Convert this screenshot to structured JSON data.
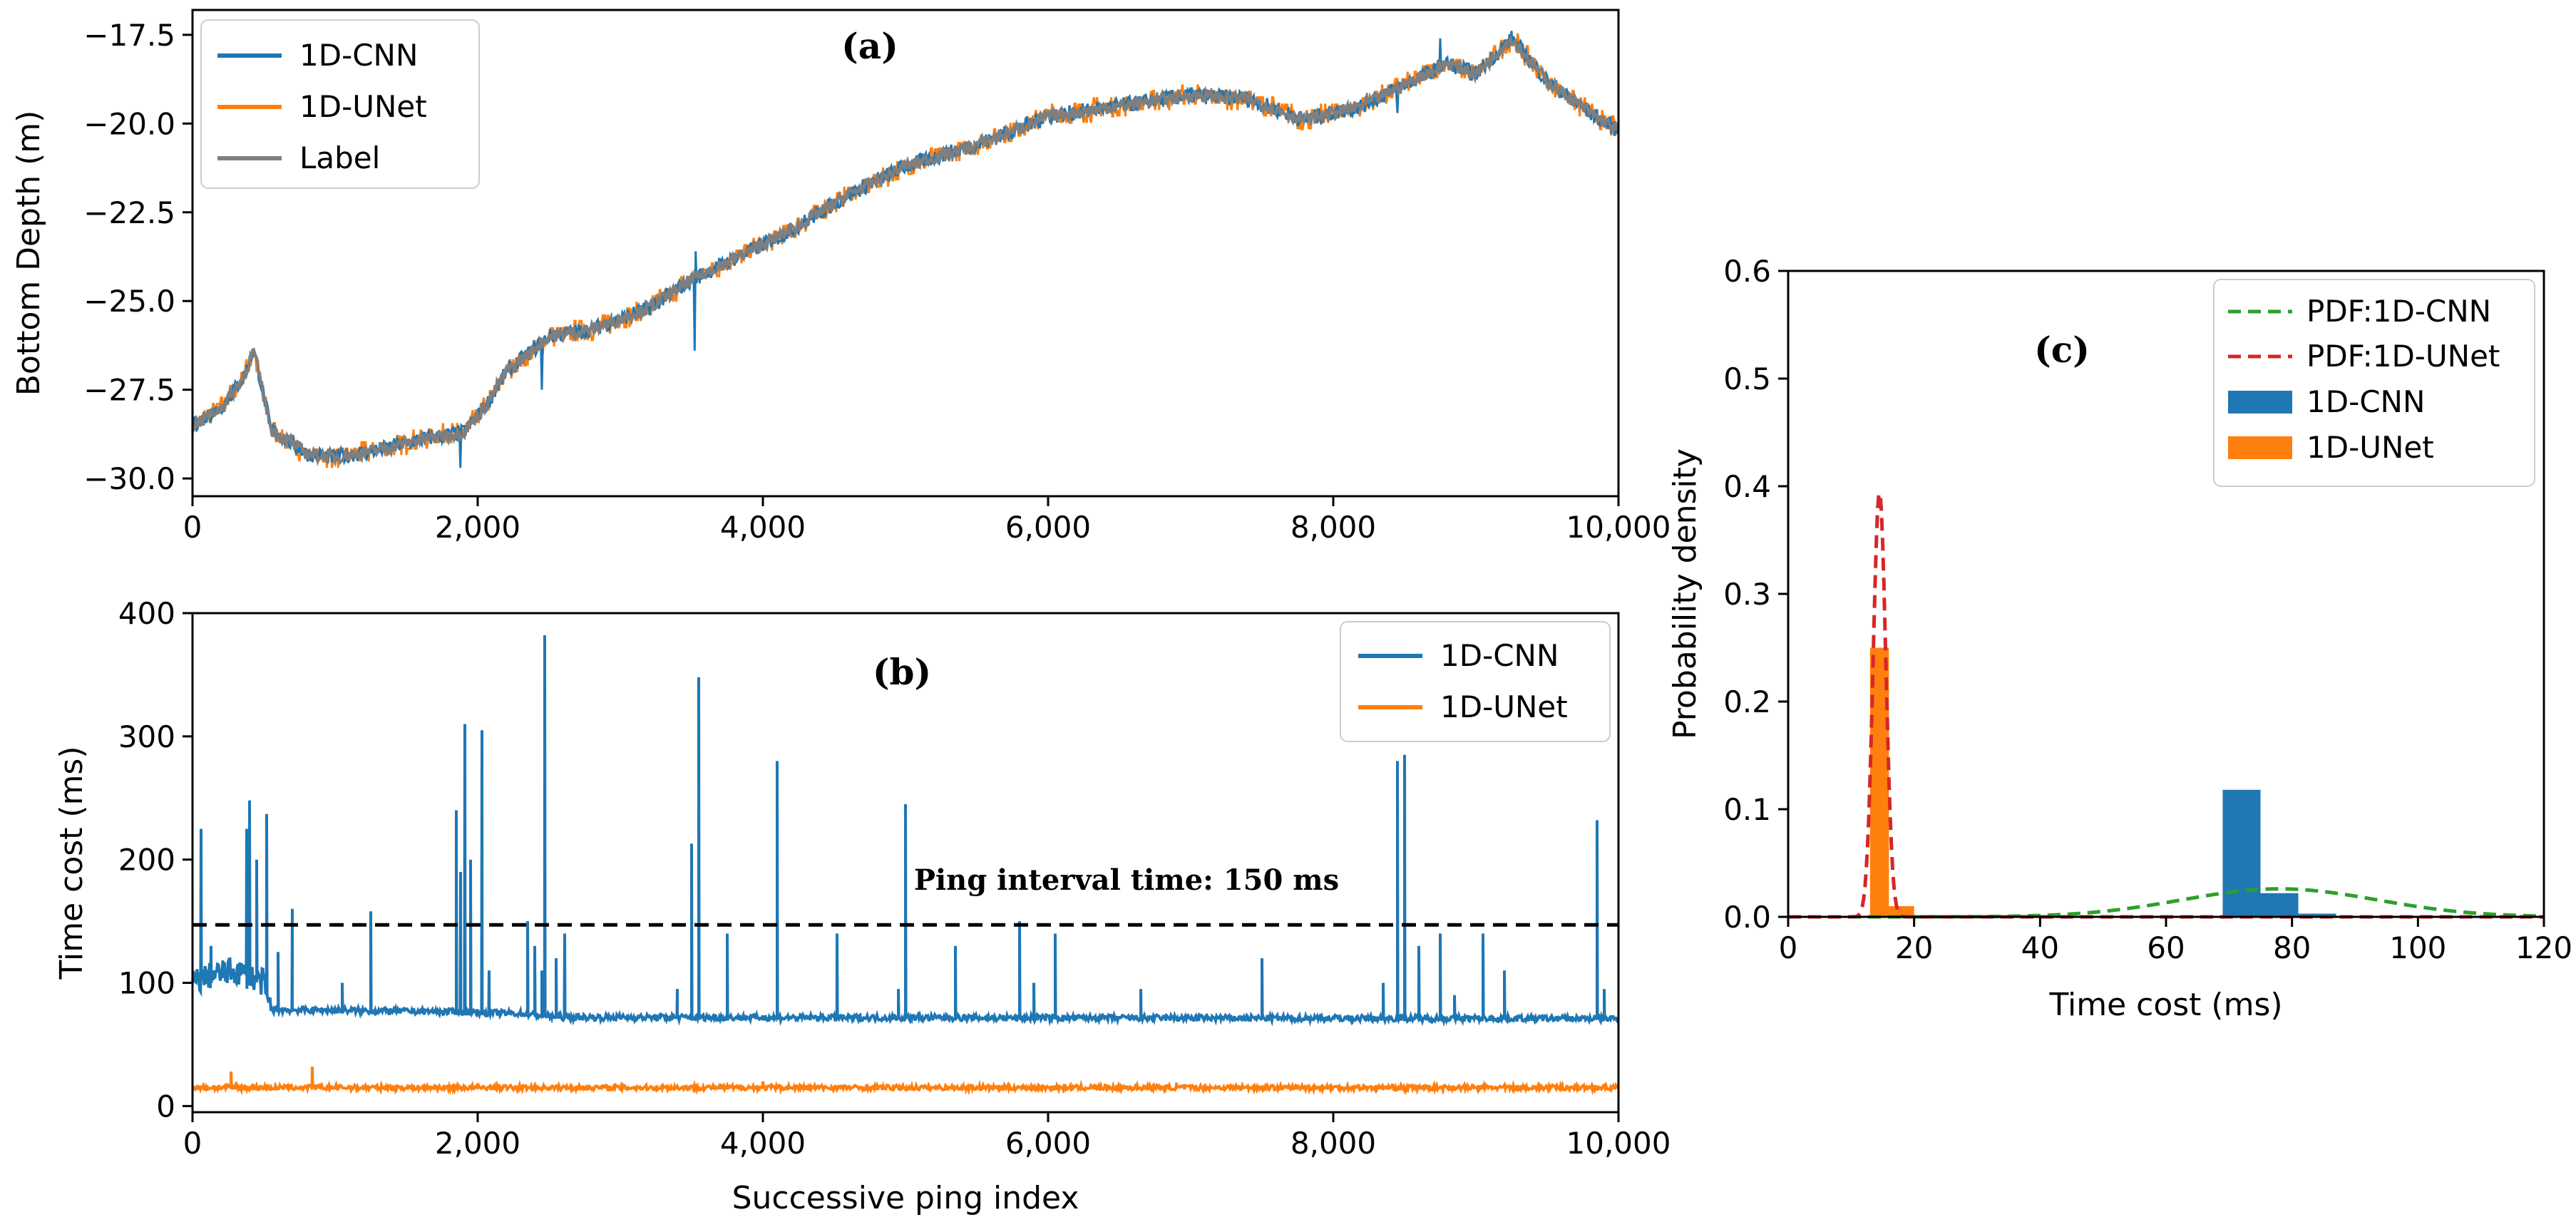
{
  "colors": {
    "cnn": "#1f77b4",
    "unet": "#ff7f0e",
    "label": "#7f7f7f",
    "pdf_cnn": "#2ca02c",
    "pdf_unet": "#d62728",
    "ref": "#000000"
  },
  "chart_data": [
    {
      "id": "a",
      "type": "line",
      "panel_label": "(a)",
      "xlabel": "",
      "ylabel": "Bottom Depth (m)",
      "xlim": [
        0,
        10000
      ],
      "ylim": [
        -30.5,
        -16.8
      ],
      "xticks": [
        0,
        2000,
        4000,
        6000,
        8000,
        10000
      ],
      "xtick_labels": [
        "0",
        "2,000",
        "4,000",
        "6,000",
        "8,000",
        "10,000"
      ],
      "yticks": [
        -17.5,
        -20.0,
        -22.5,
        -25.0,
        -27.5,
        -30.0
      ],
      "ytick_labels": [
        "−17.5",
        "−20.0",
        "−22.5",
        "−25.0",
        "−27.5",
        "−30.0"
      ],
      "legend": {
        "placement": "top-left",
        "entries": [
          "1D-CNN",
          "1D-UNet",
          "Label"
        ]
      },
      "profile": {
        "x": [
          0,
          200,
          350,
          430,
          550,
          800,
          1000,
          1300,
          1600,
          1900,
          2050,
          2200,
          2500,
          2800,
          3200,
          3500,
          3800,
          4200,
          4600,
          5000,
          5500,
          6000,
          6500,
          7000,
          7400,
          7800,
          8200,
          8500,
          8800,
          9000,
          9250,
          9500,
          9800,
          10000
        ],
        "y": [
          -28.5,
          -28.0,
          -27.2,
          -26.4,
          -28.6,
          -29.3,
          -29.4,
          -29.2,
          -28.9,
          -28.7,
          -28.0,
          -27.0,
          -26.0,
          -25.8,
          -25.2,
          -24.4,
          -23.8,
          -23.0,
          -22.0,
          -21.2,
          -20.6,
          -19.8,
          -19.5,
          -19.2,
          -19.3,
          -19.9,
          -19.5,
          -18.9,
          -18.3,
          -18.6,
          -17.6,
          -18.8,
          -19.7,
          -20.2
        ]
      },
      "spikes": [
        {
          "x": 1880,
          "y": -29.7
        },
        {
          "x": 2450,
          "y": -27.5
        },
        {
          "x": 3520,
          "y": -26.4
        },
        {
          "x": 3530,
          "y": -23.6
        },
        {
          "x": 8450,
          "y": -19.7
        },
        {
          "x": 8750,
          "y": -17.6
        }
      ]
    },
    {
      "id": "b",
      "type": "line",
      "panel_label": "(b)",
      "xlabel": "Successive ping index",
      "ylabel": "Time cost (ms)",
      "xlim": [
        0,
        10000
      ],
      "ylim": [
        -5,
        400
      ],
      "xticks": [
        0,
        2000,
        4000,
        6000,
        8000,
        10000
      ],
      "xtick_labels": [
        "0",
        "2,000",
        "4,000",
        "6,000",
        "8,000",
        "10,000"
      ],
      "yticks": [
        0,
        100,
        200,
        300,
        400
      ],
      "ytick_labels": [
        "0",
        "100",
        "200",
        "300",
        "400"
      ],
      "legend": {
        "placement": "top-right",
        "entries": [
          "1D-CNN",
          "1D-UNet"
        ]
      },
      "reference": {
        "y": 147,
        "text": "Ping interval time: 150 ms"
      },
      "series": [
        {
          "name": "1D-CNN",
          "baseline": {
            "x": [
              0,
              100,
              300,
              500,
              550,
              800,
              1500,
              2000,
              2300,
              2600,
              10000
            ],
            "y": [
              100,
              105,
              110,
              100,
              78,
              78,
              77,
              76,
              75,
              72,
              71
            ]
          },
          "spikes": [
            [
              60,
              225
            ],
            [
              130,
              130
            ],
            [
              380,
              225
            ],
            [
              400,
              248
            ],
            [
              450,
              200
            ],
            [
              520,
              237
            ],
            [
              600,
              125
            ],
            [
              700,
              160
            ],
            [
              1050,
              100
            ],
            [
              1250,
              158
            ],
            [
              1850,
              240
            ],
            [
              1880,
              190
            ],
            [
              1910,
              310
            ],
            [
              1950,
              200
            ],
            [
              2030,
              305
            ],
            [
              2080,
              110
            ],
            [
              2350,
              150
            ],
            [
              2400,
              130
            ],
            [
              2450,
              110
            ],
            [
              2470,
              382
            ],
            [
              2550,
              120
            ],
            [
              2610,
              140
            ],
            [
              3400,
              95
            ],
            [
              3500,
              213
            ],
            [
              3550,
              348
            ],
            [
              3750,
              140
            ],
            [
              4100,
              280
            ],
            [
              4520,
              140
            ],
            [
              4950,
              95
            ],
            [
              5000,
              245
            ],
            [
              5350,
              130
            ],
            [
              5800,
              150
            ],
            [
              5900,
              100
            ],
            [
              6050,
              140
            ],
            [
              6650,
              95
            ],
            [
              7500,
              120
            ],
            [
              8350,
              100
            ],
            [
              8450,
              280
            ],
            [
              8500,
              285
            ],
            [
              8600,
              130
            ],
            [
              8750,
              140
            ],
            [
              8850,
              90
            ],
            [
              9050,
              140
            ],
            [
              9200,
              110
            ],
            [
              9850,
              232
            ],
            [
              9900,
              95
            ]
          ]
        },
        {
          "name": "1D-UNet",
          "baseline": {
            "x": [
              0,
              10000
            ],
            "y": [
              15,
              15
            ]
          },
          "spikes": [
            [
              270,
              28
            ],
            [
              840,
              32
            ],
            [
              4000,
              20
            ],
            [
              6900,
              19
            ]
          ]
        }
      ]
    },
    {
      "id": "c",
      "type": "bar",
      "panel_label": "(c)",
      "xlabel": "Time cost (ms)",
      "ylabel": "Probability density",
      "xlim": [
        0,
        120
      ],
      "ylim": [
        0,
        0.6
      ],
      "xticks": [
        0,
        20,
        40,
        60,
        80,
        100,
        120
      ],
      "xtick_labels": [
        "0",
        "20",
        "40",
        "60",
        "80",
        "100",
        "120"
      ],
      "yticks": [
        0.0,
        0.1,
        0.2,
        0.3,
        0.4,
        0.5,
        0.6
      ],
      "ytick_labels": [
        "0.0",
        "0.1",
        "0.2",
        "0.3",
        "0.4",
        "0.5",
        "0.6"
      ],
      "legend": {
        "placement": "top-right",
        "entries": [
          "PDF:1D-CNN",
          "PDF:1D-UNet",
          "1D-CNN",
          "1D-UNet"
        ]
      },
      "histograms": [
        {
          "name": "1D-CNN",
          "bins": [
            [
              69,
              75,
              0.118
            ],
            [
              75,
              81,
              0.022
            ],
            [
              81,
              87,
              0.003
            ]
          ]
        },
        {
          "name": "1D-UNet",
          "bins": [
            [
              13,
              16,
              0.25
            ],
            [
              16,
              20,
              0.01
            ]
          ]
        }
      ],
      "pdf": [
        {
          "name": "PDF:1D-CNN",
          "mean": 78,
          "sd": 15.5,
          "peak": 0.026
        },
        {
          "name": "PDF:1D-UNet",
          "mean": 14.5,
          "sd": 1.0,
          "peak": 0.395
        }
      ]
    }
  ]
}
